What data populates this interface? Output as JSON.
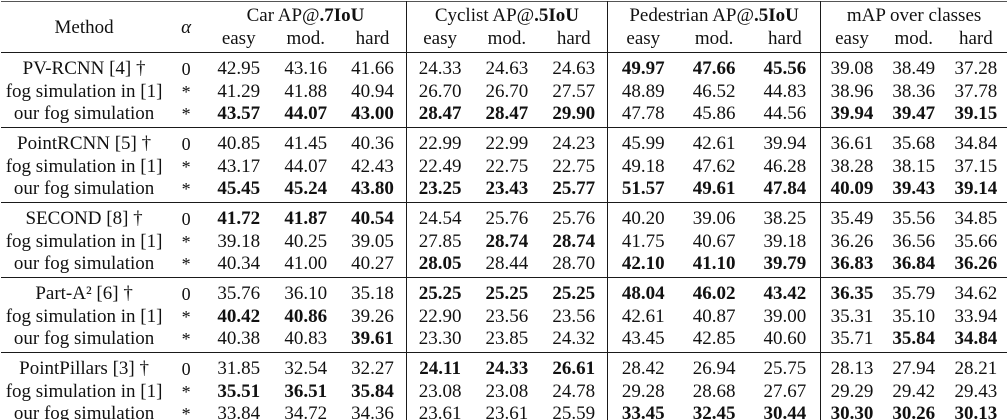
{
  "table": {
    "col_headers": {
      "method": "Method",
      "alpha": "α",
      "groups": [
        {
          "prefix": "Car AP@",
          "bold": ".7IoU"
        },
        {
          "prefix": "Cyclist AP@",
          "bold": ".5IoU"
        },
        {
          "prefix": "Pedestrian AP@",
          "bold": ".5IoU"
        },
        {
          "prefix": "mAP over classes",
          "bold": ""
        }
      ],
      "sub": [
        "easy",
        "mod.",
        "hard"
      ]
    },
    "groups": [
      {
        "rows": [
          {
            "method": "PV-RCNN [4] †",
            "alpha": "0",
            "values": [
              "42.95",
              "43.16",
              "41.66",
              "24.33",
              "24.63",
              "24.63",
              "49.97",
              "47.66",
              "45.56",
              "39.08",
              "38.49",
              "37.28"
            ],
            "bold": [
              0,
              0,
              0,
              0,
              0,
              0,
              1,
              1,
              1,
              0,
              0,
              0
            ]
          },
          {
            "method": "fog simulation in [1]",
            "alpha": "*",
            "values": [
              "41.29",
              "41.88",
              "40.94",
              "26.70",
              "26.70",
              "27.57",
              "48.89",
              "46.52",
              "44.83",
              "38.96",
              "38.36",
              "37.78"
            ],
            "bold": [
              0,
              0,
              0,
              0,
              0,
              0,
              0,
              0,
              0,
              0,
              0,
              0
            ]
          },
          {
            "method": "our fog simulation",
            "alpha": "*",
            "values": [
              "43.57",
              "44.07",
              "43.00",
              "28.47",
              "28.47",
              "29.90",
              "47.78",
              "45.86",
              "44.56",
              "39.94",
              "39.47",
              "39.15"
            ],
            "bold": [
              1,
              1,
              1,
              1,
              1,
              1,
              0,
              0,
              0,
              1,
              1,
              1
            ]
          }
        ]
      },
      {
        "rows": [
          {
            "method": "PointRCNN [5] †",
            "alpha": "0",
            "values": [
              "40.85",
              "41.45",
              "40.36",
              "22.99",
              "22.99",
              "24.23",
              "45.99",
              "42.61",
              "39.94",
              "36.61",
              "35.68",
              "34.84"
            ],
            "bold": [
              0,
              0,
              0,
              0,
              0,
              0,
              0,
              0,
              0,
              0,
              0,
              0
            ]
          },
          {
            "method": "fog simulation in [1]",
            "alpha": "*",
            "values": [
              "43.17",
              "44.07",
              "42.43",
              "22.49",
              "22.75",
              "22.75",
              "49.18",
              "47.62",
              "46.28",
              "38.28",
              "38.15",
              "37.15"
            ],
            "bold": [
              0,
              0,
              0,
              0,
              0,
              0,
              0,
              0,
              0,
              0,
              0,
              0
            ]
          },
          {
            "method": "our fog simulation",
            "alpha": "*",
            "values": [
              "45.45",
              "45.24",
              "43.80",
              "23.25",
              "23.43",
              "25.77",
              "51.57",
              "49.61",
              "47.84",
              "40.09",
              "39.43",
              "39.14"
            ],
            "bold": [
              1,
              1,
              1,
              1,
              1,
              1,
              1,
              1,
              1,
              1,
              1,
              1
            ]
          }
        ]
      },
      {
        "rows": [
          {
            "method": "SECOND [8] †",
            "alpha": "0",
            "values": [
              "41.72",
              "41.87",
              "40.54",
              "24.54",
              "25.76",
              "25.76",
              "40.20",
              "39.06",
              "38.25",
              "35.49",
              "35.56",
              "34.85"
            ],
            "bold": [
              1,
              1,
              1,
              0,
              0,
              0,
              0,
              0,
              0,
              0,
              0,
              0
            ]
          },
          {
            "method": "fog simulation in [1]",
            "alpha": "*",
            "values": [
              "39.18",
              "40.25",
              "39.05",
              "27.85",
              "28.74",
              "28.74",
              "41.75",
              "40.67",
              "39.18",
              "36.26",
              "36.56",
              "35.66"
            ],
            "bold": [
              0,
              0,
              0,
              0,
              1,
              1,
              0,
              0,
              0,
              0,
              0,
              0
            ]
          },
          {
            "method": "our fog simulation",
            "alpha": "*",
            "values": [
              "40.34",
              "41.00",
              "40.27",
              "28.05",
              "28.44",
              "28.70",
              "42.10",
              "41.10",
              "39.79",
              "36.83",
              "36.84",
              "36.26"
            ],
            "bold": [
              0,
              0,
              0,
              1,
              0,
              0,
              1,
              1,
              1,
              1,
              1,
              1
            ]
          }
        ]
      },
      {
        "rows": [
          {
            "method": "Part-A² [6] †",
            "alpha": "0",
            "values": [
              "35.76",
              "36.10",
              "35.18",
              "25.25",
              "25.25",
              "25.25",
              "48.04",
              "46.02",
              "43.42",
              "36.35",
              "35.79",
              "34.62"
            ],
            "bold": [
              0,
              0,
              0,
              1,
              1,
              1,
              1,
              1,
              1,
              1,
              0,
              0
            ]
          },
          {
            "method": "fog simulation in [1]",
            "alpha": "*",
            "values": [
              "40.42",
              "40.86",
              "39.26",
              "22.90",
              "23.56",
              "23.56",
              "42.61",
              "40.87",
              "39.00",
              "35.31",
              "35.10",
              "33.94"
            ],
            "bold": [
              1,
              1,
              0,
              0,
              0,
              0,
              0,
              0,
              0,
              0,
              0,
              0
            ]
          },
          {
            "method": "our fog simulation",
            "alpha": "*",
            "values": [
              "40.38",
              "40.83",
              "39.61",
              "23.30",
              "23.85",
              "24.32",
              "43.45",
              "42.85",
              "40.60",
              "35.71",
              "35.84",
              "34.84"
            ],
            "bold": [
              0,
              0,
              1,
              0,
              0,
              0,
              0,
              0,
              0,
              0,
              1,
              1
            ]
          }
        ]
      },
      {
        "rows": [
          {
            "method": "PointPillars [3] †",
            "alpha": "0",
            "values": [
              "31.85",
              "32.54",
              "32.27",
              "24.11",
              "24.33",
              "26.61",
              "28.42",
              "26.94",
              "25.75",
              "28.13",
              "27.94",
              "28.21"
            ],
            "bold": [
              0,
              0,
              0,
              1,
              1,
              1,
              0,
              0,
              0,
              0,
              0,
              0
            ]
          },
          {
            "method": "fog simulation in [1]",
            "alpha": "*",
            "values": [
              "35.51",
              "36.51",
              "35.84",
              "23.08",
              "23.08",
              "24.78",
              "29.28",
              "28.68",
              "27.67",
              "29.29",
              "29.42",
              "29.43"
            ],
            "bold": [
              1,
              1,
              1,
              0,
              0,
              0,
              0,
              0,
              0,
              0,
              0,
              0
            ]
          },
          {
            "method": "our fog simulation",
            "alpha": "*",
            "values": [
              "33.84",
              "34.72",
              "34.36",
              "23.61",
              "23.61",
              "25.59",
              "33.45",
              "32.45",
              "30.44",
              "30.30",
              "30.26",
              "30.13"
            ],
            "bold": [
              0,
              0,
              0,
              0,
              0,
              0,
              1,
              1,
              1,
              1,
              1,
              1
            ]
          }
        ]
      }
    ]
  }
}
